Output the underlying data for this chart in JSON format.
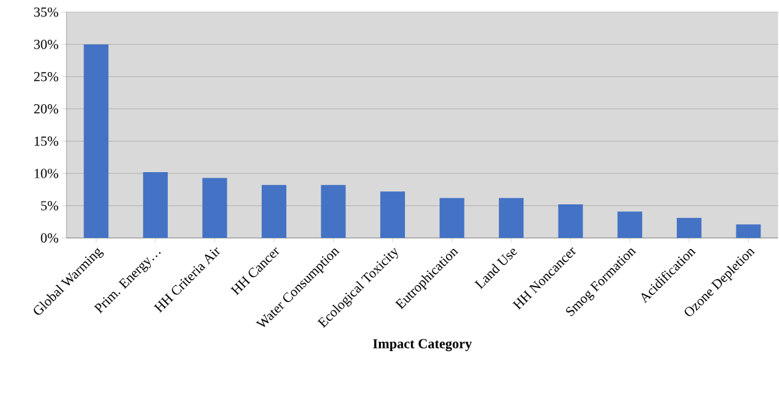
{
  "chart_data": {
    "type": "bar",
    "xlabel": "**Impact Category**",
    "categories": [
      "Global Warming",
      "Prim. Energy…",
      "HH Criteria Air",
      "HH Cancer",
      "Water Consumption",
      "Ecological Toxicity",
      "Eutrophication",
      "Land Use",
      "HH Noncancer",
      "Smog Formation",
      "Acidification",
      "Ozone Depletion"
    ],
    "values": [
      30,
      10.2,
      9.3,
      8.2,
      8.2,
      7.2,
      6.2,
      6.2,
      5.2,
      4.1,
      3.1,
      2.1
    ],
    "color": "#4472c4",
    "ylim": [
      0,
      35
    ],
    "yticks": [
      {
        "value": 0,
        "label": "0%"
      },
      {
        "value": 5,
        "label": "5%"
      },
      {
        "value": 10,
        "label": "10%"
      },
      {
        "value": 15,
        "label": "15%"
      },
      {
        "value": 20,
        "label": "20%"
      },
      {
        "value": 25,
        "label": "25%"
      },
      {
        "value": 30,
        "label": "30%"
      },
      {
        "value": 35,
        "label": "35%"
      }
    ],
    "grid": "y"
  }
}
